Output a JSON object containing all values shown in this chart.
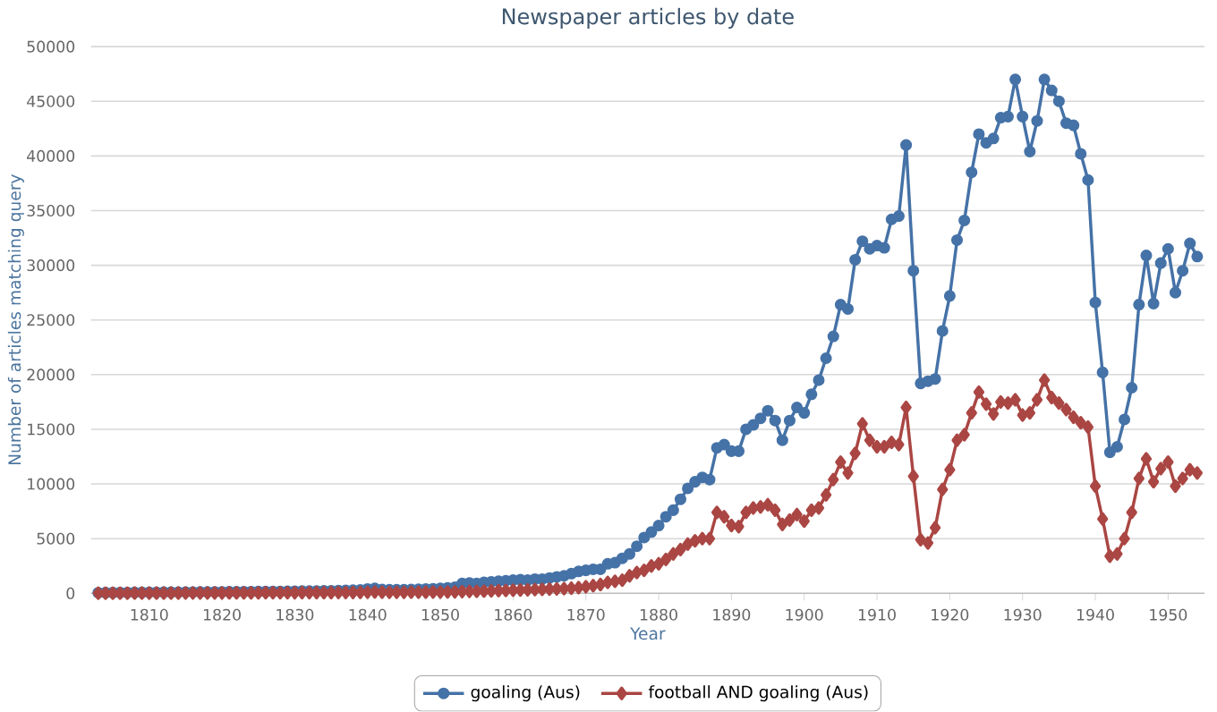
{
  "chart_data": {
    "type": "line",
    "title": "Newspaper articles by date",
    "xlabel": "Year",
    "ylabel": "Number of articles matching query",
    "x": [
      1803,
      1804,
      1805,
      1806,
      1807,
      1808,
      1809,
      1810,
      1811,
      1812,
      1813,
      1814,
      1815,
      1816,
      1817,
      1818,
      1819,
      1820,
      1821,
      1822,
      1823,
      1824,
      1825,
      1826,
      1827,
      1828,
      1829,
      1830,
      1831,
      1832,
      1833,
      1834,
      1835,
      1836,
      1837,
      1838,
      1839,
      1840,
      1841,
      1842,
      1843,
      1844,
      1845,
      1846,
      1847,
      1848,
      1849,
      1850,
      1851,
      1852,
      1853,
      1854,
      1855,
      1856,
      1857,
      1858,
      1859,
      1860,
      1861,
      1862,
      1863,
      1864,
      1865,
      1866,
      1867,
      1868,
      1869,
      1870,
      1871,
      1872,
      1873,
      1874,
      1875,
      1876,
      1877,
      1878,
      1879,
      1880,
      1881,
      1882,
      1883,
      1884,
      1885,
      1886,
      1887,
      1888,
      1889,
      1890,
      1891,
      1892,
      1893,
      1894,
      1895,
      1896,
      1897,
      1898,
      1899,
      1900,
      1901,
      1902,
      1903,
      1904,
      1905,
      1906,
      1907,
      1908,
      1909,
      1910,
      1911,
      1912,
      1913,
      1914,
      1915,
      1916,
      1917,
      1918,
      1919,
      1920,
      1921,
      1922,
      1923,
      1924,
      1925,
      1926,
      1927,
      1928,
      1929,
      1930,
      1931,
      1932,
      1933,
      1934,
      1935,
      1936,
      1937,
      1938,
      1939,
      1940,
      1941,
      1942,
      1943,
      1944,
      1945,
      1946,
      1947,
      1948,
      1949,
      1950,
      1951,
      1952,
      1953,
      1954
    ],
    "series": [
      {
        "name": "goaling (Aus)",
        "color": "#4572a7",
        "marker": "circle",
        "values": [
          50,
          60,
          60,
          70,
          70,
          80,
          80,
          90,
          90,
          100,
          100,
          100,
          110,
          110,
          120,
          120,
          130,
          130,
          140,
          140,
          150,
          150,
          160,
          160,
          170,
          170,
          180,
          190,
          200,
          200,
          210,
          220,
          230,
          240,
          260,
          280,
          300,
          400,
          450,
          350,
          320,
          320,
          330,
          350,
          370,
          400,
          420,
          450,
          500,
          550,
          900,
          950,
          900,
          1000,
          1050,
          1100,
          1150,
          1200,
          1250,
          1200,
          1300,
          1300,
          1400,
          1500,
          1600,
          1800,
          2000,
          2100,
          2200,
          2200,
          2700,
          2800,
          3200,
          3600,
          4300,
          5100,
          5600,
          6200,
          7000,
          7600,
          8600,
          9600,
          10200,
          10600,
          10400,
          13300,
          13600,
          13000,
          13000,
          15000,
          15400,
          16000,
          16700,
          15800,
          14000,
          15800,
          17000,
          16500,
          18200,
          19500,
          21500,
          23500,
          26400,
          26000,
          30500,
          32200,
          31500,
          31800,
          31600,
          34200,
          34500,
          41000,
          29500,
          19200,
          19400,
          19600,
          24000,
          27200,
          32300,
          34100,
          38500,
          42000,
          41200,
          41600,
          43500,
          43600,
          47000,
          43600,
          40400,
          43200,
          47000,
          46000,
          45000,
          43000,
          42800,
          40200,
          37800,
          26600,
          20200,
          12900,
          13400,
          15900,
          18800,
          26400,
          30900,
          26500,
          30200,
          31500,
          27500,
          29500,
          32000,
          30800
        ]
      },
      {
        "name": "football AND goaling (Aus)",
        "color": "#aa4643",
        "marker": "diamond",
        "values": [
          10,
          10,
          10,
          10,
          10,
          20,
          20,
          20,
          20,
          20,
          20,
          20,
          30,
          30,
          30,
          30,
          30,
          30,
          40,
          40,
          40,
          40,
          40,
          50,
          50,
          50,
          50,
          50,
          60,
          60,
          60,
          60,
          60,
          70,
          70,
          70,
          80,
          100,
          120,
          100,
          90,
          90,
          90,
          100,
          100,
          100,
          110,
          110,
          120,
          130,
          150,
          170,
          180,
          200,
          220,
          240,
          260,
          280,
          300,
          320,
          340,
          360,
          380,
          400,
          430,
          470,
          520,
          600,
          700,
          800,
          1000,
          1100,
          1200,
          1600,
          1900,
          2100,
          2500,
          2700,
          3100,
          3600,
          4000,
          4500,
          4800,
          5000,
          5000,
          7400,
          7000,
          6200,
          6100,
          7400,
          7800,
          7900,
          8100,
          7600,
          6300,
          6700,
          7200,
          6600,
          7600,
          7800,
          9000,
          10400,
          12000,
          11000,
          12800,
          15500,
          14000,
          13400,
          13400,
          13800,
          13600,
          17000,
          10700,
          4900,
          4600,
          6000,
          9500,
          11300,
          14000,
          14500,
          16500,
          18400,
          17300,
          16400,
          17500,
          17400,
          17700,
          16300,
          16500,
          17700,
          19500,
          17900,
          17400,
          16800,
          16100,
          15600,
          15200,
          9800,
          6800,
          3400,
          3600,
          5000,
          7400,
          10500,
          12300,
          10200,
          11400,
          12000,
          9800,
          10500,
          11300,
          11000
        ]
      }
    ],
    "xlim": [
      1802,
      1955
    ],
    "xticks": [
      1810,
      1820,
      1830,
      1840,
      1850,
      1860,
      1870,
      1880,
      1890,
      1900,
      1910,
      1920,
      1930,
      1940,
      1950
    ],
    "ylim": [
      0,
      50000
    ],
    "yticks": [
      0,
      5000,
      10000,
      15000,
      20000,
      25000,
      30000,
      35000,
      40000,
      45000,
      50000
    ],
    "grid": "y",
    "legend": "bottom",
    "line_style": "solid"
  }
}
